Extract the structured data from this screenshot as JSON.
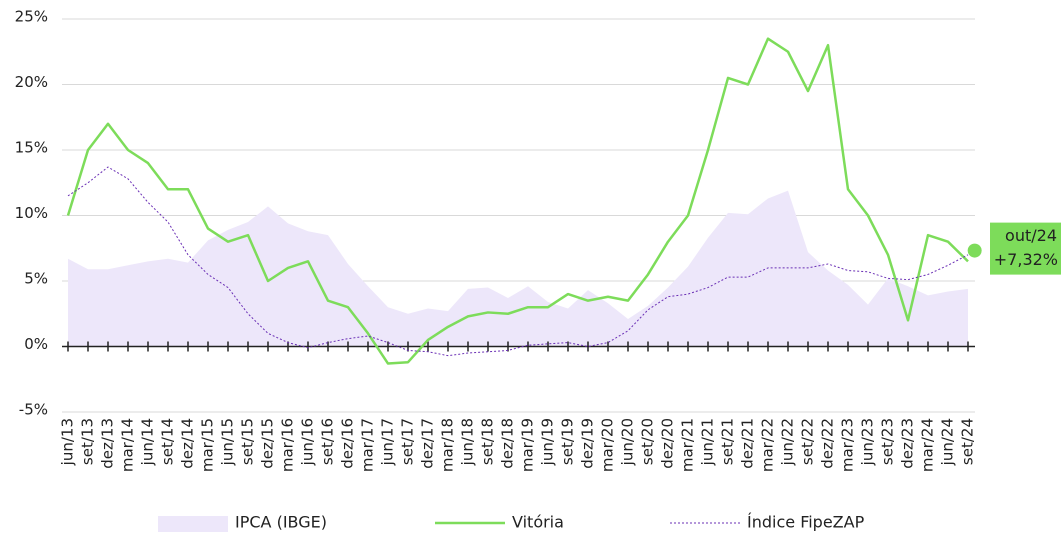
{
  "chart_data": {
    "type": "line",
    "categories": [
      "jun/13",
      "set/13",
      "dez/13",
      "mar/14",
      "jun/14",
      "set/14",
      "dez/14",
      "mar/15",
      "jun/15",
      "set/15",
      "dez/15",
      "mar/16",
      "jun/16",
      "set/16",
      "dez/16",
      "mar/17",
      "jun/17",
      "set/17",
      "dez/17",
      "mar/18",
      "jun/18",
      "set/18",
      "dez/18",
      "mar/19",
      "jun/19",
      "set/19",
      "dez/19",
      "mar/20",
      "jun/20",
      "set/20",
      "dez/20",
      "mar/21",
      "jun/21",
      "set/21",
      "dez/21",
      "mar/22",
      "jun/22",
      "set/22",
      "dez/22",
      "mar/23",
      "jun/23",
      "set/23",
      "dez/23",
      "mar/24",
      "jun/24",
      "set/24"
    ],
    "series": [
      {
        "name": "IPCA (IBGE)",
        "style": "area",
        "color": "#ede7fa",
        "values": [
          6.7,
          5.9,
          5.9,
          6.2,
          6.5,
          6.7,
          6.4,
          8.1,
          8.9,
          9.5,
          10.7,
          9.4,
          8.8,
          8.5,
          6.3,
          4.6,
          3.0,
          2.5,
          2.9,
          2.7,
          4.4,
          4.5,
          3.7,
          4.6,
          3.4,
          2.9,
          4.3,
          3.3,
          2.1,
          3.1,
          4.5,
          6.1,
          8.3,
          10.2,
          10.1,
          11.3,
          11.9,
          7.2,
          5.8,
          4.7,
          3.2,
          5.2,
          4.6,
          3.9,
          4.2,
          4.4
        ]
      },
      {
        "name": "Vitória",
        "style": "solid",
        "color": "#7ddc5a",
        "values": [
          10,
          15,
          17,
          15,
          14,
          12,
          12,
          9,
          8,
          8.5,
          5,
          6,
          6.5,
          3.5,
          3,
          1,
          -1.3,
          -1.2,
          0.5,
          1.5,
          2.3,
          2.6,
          2.5,
          3,
          3,
          4,
          3.5,
          3.8,
          3.5,
          5.5,
          8,
          10,
          15,
          20.5,
          20,
          23.5,
          22.5,
          19.5,
          23,
          12,
          10,
          7,
          2,
          8.5,
          8,
          6.5
        ]
      },
      {
        "name": "Índice FipeZAP",
        "style": "dotted",
        "color": "#6a2fb5",
        "values": [
          11.5,
          12.5,
          13.7,
          12.8,
          11,
          9.5,
          7,
          5.5,
          4.5,
          2.5,
          1,
          0.3,
          -0.1,
          0.3,
          0.6,
          0.8,
          0.3,
          -0.3,
          -0.4,
          -0.7,
          -0.5,
          -0.4,
          -0.3,
          0.1,
          0.2,
          0.3,
          0,
          0.3,
          1.2,
          2.8,
          3.8,
          4.0,
          4.5,
          5.3,
          5.3,
          6.0,
          6.0,
          6.0,
          6.3,
          5.8,
          5.7,
          5.2,
          5.1,
          5.5,
          6.2,
          7.0
        ]
      }
    ],
    "ylim": [
      -5,
      25
    ],
    "yticks": [
      {
        "value": -5,
        "label": "-5%"
      },
      {
        "value": 0,
        "label": "0%"
      },
      {
        "value": 5,
        "label": "5%"
      },
      {
        "value": 10,
        "label": "10%"
      },
      {
        "value": 15,
        "label": "15%"
      },
      {
        "value": 20,
        "label": "20%"
      },
      {
        "value": 25,
        "label": "25%"
      }
    ],
    "grid": true,
    "legend": "bottom",
    "annotation": {
      "label": "out/24",
      "value": 7.32,
      "value_label": "+7,32%",
      "color": "#7ddc5a"
    }
  }
}
